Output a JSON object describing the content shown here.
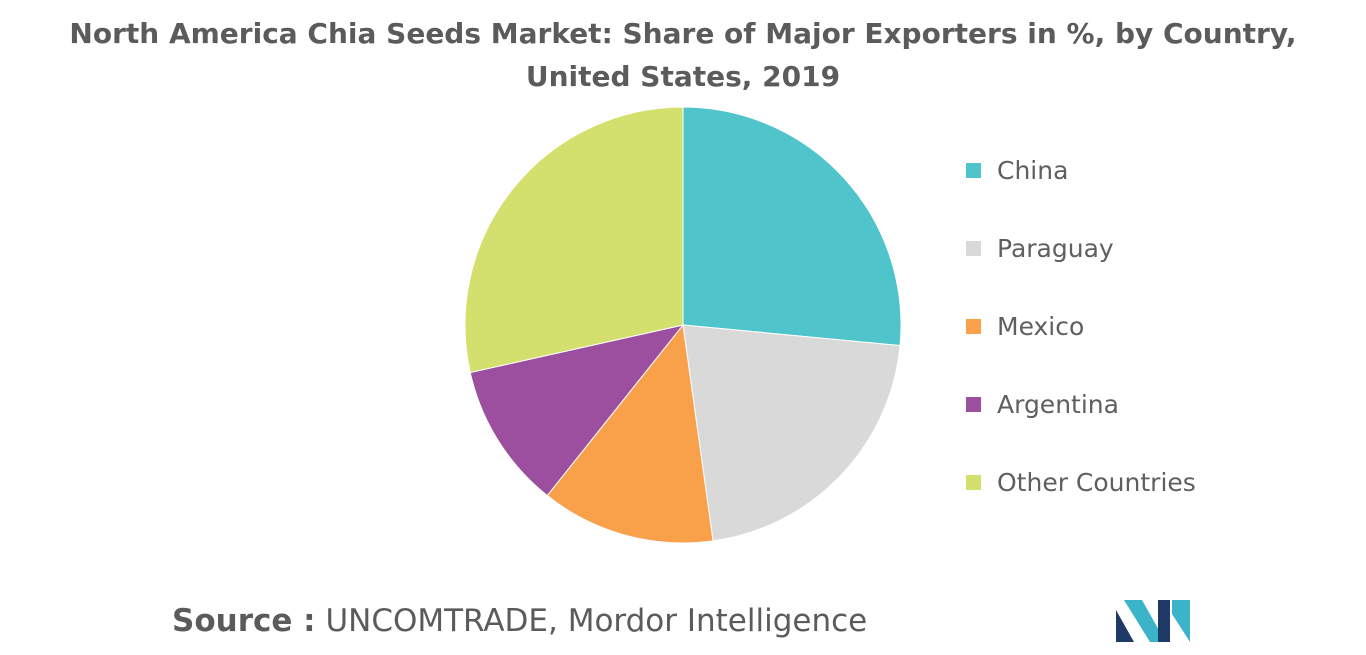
{
  "chart_data": {
    "type": "pie",
    "title": "North America Chia Seeds Market: Share of Major Exporters in %, by Country, United States, 2019",
    "series": [
      {
        "name": "China",
        "value": 26.5,
        "color": "#4fc4cb"
      },
      {
        "name": "Paraguay",
        "value": 21.3,
        "color": "#d9d9d9"
      },
      {
        "name": "Mexico",
        "value": 12.9,
        "color": "#f9a04a"
      },
      {
        "name": "Argentina",
        "value": 10.8,
        "color": "#9c4f9e"
      },
      {
        "name": "Other Countries",
        "value": 28.5,
        "color": "#d3e06d"
      }
    ],
    "legend_position": "right"
  },
  "source": {
    "label": "Source :",
    "text": "UNCOMTRADE, Mordor Intelligence"
  },
  "logo": {
    "icon": "mordor-intelligence-logo-icon",
    "colors": [
      "#1f3a66",
      "#3bb3c9"
    ]
  }
}
